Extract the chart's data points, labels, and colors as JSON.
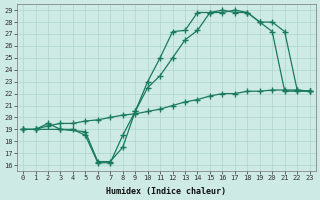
{
  "xlabel": "Humidex (Indice chaleur)",
  "ylabel": "",
  "xlim": [
    -0.5,
    23.5
  ],
  "ylim": [
    15.5,
    29.5
  ],
  "xticks": [
    0,
    1,
    2,
    3,
    4,
    5,
    6,
    7,
    8,
    9,
    10,
    11,
    12,
    13,
    14,
    15,
    16,
    17,
    18,
    19,
    20,
    21,
    22,
    23
  ],
  "yticks": [
    16,
    17,
    18,
    19,
    20,
    21,
    22,
    23,
    24,
    25,
    26,
    27,
    28,
    29
  ],
  "line_color": "#1a7a5e",
  "bg_color": "#ceeae4",
  "grid_color": "#aed4cc",
  "line1_x": [
    0,
    1,
    2,
    3,
    4,
    5,
    6,
    7,
    8,
    9,
    10,
    11,
    12,
    13,
    14,
    15,
    16,
    17,
    18,
    19,
    20,
    21,
    22,
    23
  ],
  "line1_y": [
    19,
    19,
    19.5,
    19,
    19,
    18.5,
    16.2,
    16.2,
    18.5,
    20.5,
    23.0,
    25.0,
    27.2,
    27.3,
    28.8,
    28.8,
    29.0,
    28.8,
    28.8,
    28.0,
    27.2,
    22.2,
    22.2,
    22.2
  ],
  "line2_x": [
    0,
    1,
    3,
    5,
    6,
    7,
    8,
    9,
    10,
    11,
    12,
    13,
    14,
    15,
    16,
    17,
    18,
    19,
    20,
    21,
    22,
    23
  ],
  "line2_y": [
    19,
    19,
    19,
    18.8,
    16.3,
    16.3,
    17.5,
    20.5,
    22.5,
    23.5,
    25.0,
    26.5,
    27.3,
    28.8,
    28.8,
    29.0,
    28.8,
    28.0,
    28.0,
    27.2,
    22.3,
    22.2
  ],
  "line3_x": [
    0,
    1,
    2,
    3,
    4,
    5,
    6,
    7,
    8,
    9,
    10,
    11,
    12,
    13,
    14,
    15,
    16,
    17,
    18,
    19,
    20,
    21,
    22,
    23
  ],
  "line3_y": [
    19,
    19,
    19.3,
    19.5,
    19.5,
    19.7,
    19.8,
    20.0,
    20.2,
    20.3,
    20.5,
    20.7,
    21.0,
    21.3,
    21.5,
    21.8,
    22.0,
    22.0,
    22.2,
    22.2,
    22.3,
    22.3,
    22.3,
    22.2
  ]
}
